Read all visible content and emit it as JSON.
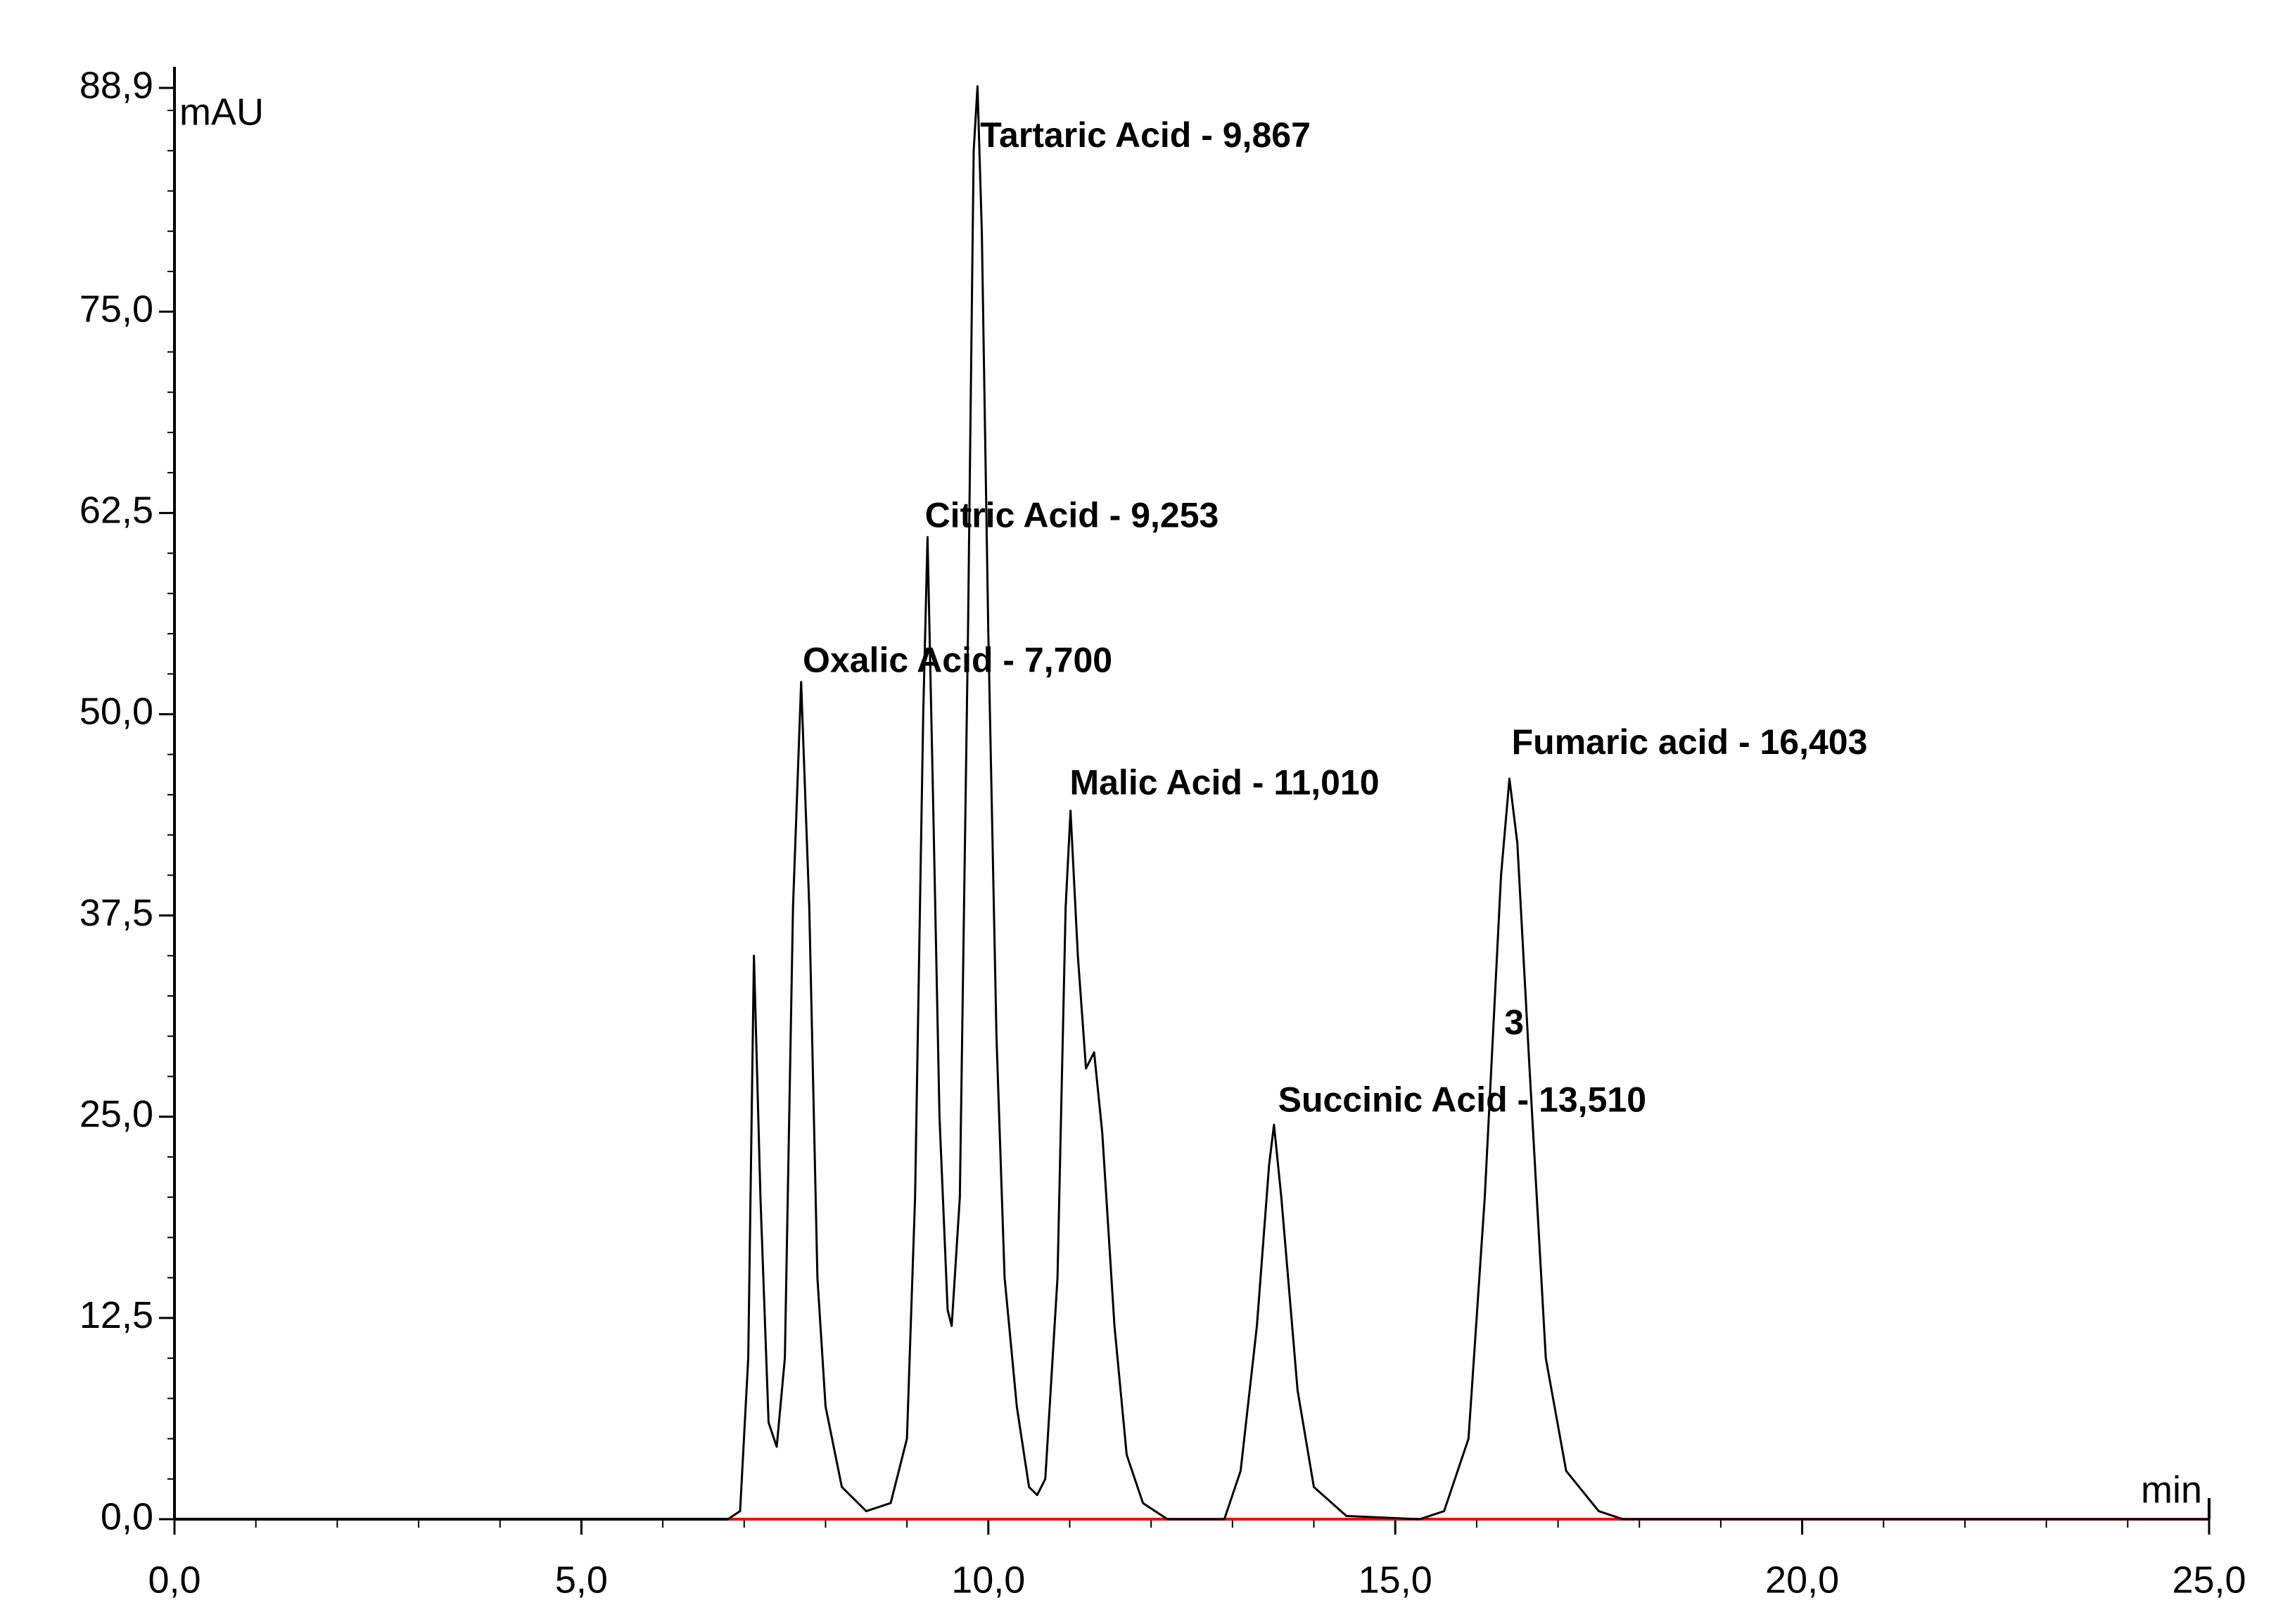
{
  "chart_data": {
    "type": "line",
    "y_label": "mAU",
    "x_label": "min",
    "xlim": [
      0,
      25
    ],
    "ylim": [
      0,
      88.9
    ],
    "xticks": [
      {
        "value": 0,
        "label": "0,0"
      },
      {
        "value": 5,
        "label": "5,0"
      },
      {
        "value": 10,
        "label": "10,0"
      },
      {
        "value": 15,
        "label": "15,0"
      },
      {
        "value": 20,
        "label": "20,0"
      },
      {
        "value": 25,
        "label": "25,0"
      }
    ],
    "yticks": [
      {
        "value": 0,
        "label": "0,0"
      },
      {
        "value": 12.5,
        "label": "12,5"
      },
      {
        "value": 25,
        "label": "25,0"
      },
      {
        "value": 37.5,
        "label": "37,5"
      },
      {
        "value": 50,
        "label": "50,0"
      },
      {
        "value": 62.5,
        "label": "62,5"
      },
      {
        "value": 75,
        "label": "75,0"
      },
      {
        "value": 88.9,
        "label": "88,9"
      }
    ],
    "grid": false,
    "x": [
      0,
      6.8,
      6.95,
      7.05,
      7.12,
      7.2,
      7.3,
      7.4,
      7.5,
      7.6,
      7.7,
      7.8,
      7.9,
      8.0,
      8.2,
      8.5,
      8.8,
      9.0,
      9.1,
      9.2,
      9.253,
      9.32,
      9.4,
      9.5,
      9.55,
      9.65,
      9.75,
      9.82,
      9.867,
      9.92,
      10.0,
      10.1,
      10.2,
      10.35,
      10.5,
      10.6,
      10.7,
      10.85,
      10.95,
      11.01,
      11.1,
      11.2,
      11.3,
      11.4,
      11.55,
      11.7,
      11.9,
      12.2,
      12.9,
      13.1,
      13.3,
      13.45,
      13.51,
      13.6,
      13.8,
      14.0,
      14.4,
      15.3,
      15.6,
      15.9,
      16.1,
      16.3,
      16.403,
      16.5,
      16.65,
      16.85,
      17.1,
      17.5,
      17.8,
      25
    ],
    "series": [
      {
        "color": "#000000",
        "values": [
          0,
          0,
          0.5,
          10,
          35,
          20,
          6,
          4.5,
          10,
          38,
          52,
          38,
          15,
          7,
          2,
          0.5,
          1,
          5,
          20,
          50,
          61,
          45,
          25,
          13,
          12,
          20,
          55,
          85,
          89,
          80,
          55,
          30,
          15,
          7,
          2,
          1.5,
          2.5,
          15,
          38,
          44,
          35,
          28,
          29,
          24,
          12,
          4,
          1,
          0,
          0,
          3,
          12,
          22,
          24.5,
          20,
          8,
          2,
          0.2,
          0,
          0.5,
          5,
          20,
          40,
          46,
          42,
          28,
          10,
          3,
          0.5,
          0,
          0
        ]
      }
    ],
    "baseline": {
      "color": "#ff0000",
      "x": [
        6.8,
        25
      ],
      "values": [
        0,
        0
      ]
    },
    "annotations": [
      {
        "text": "Tartaric Acid - 9,867",
        "x": 9.9,
        "y": 85.8
      },
      {
        "text": "Citric Acid - 9,253",
        "x": 9.22,
        "y": 62.2
      },
      {
        "text": "Oxalic Acid - 7,700",
        "x": 7.72,
        "y": 53.2
      },
      {
        "text": "Malic Acid - 11,010",
        "x": 11.0,
        "y": 45.6
      },
      {
        "text": "Fumaric acid - 16,403",
        "x": 16.43,
        "y": 48.1
      },
      {
        "text": "Succinic Acid - 13,510",
        "x": 13.56,
        "y": 25.9
      },
      {
        "text": "3",
        "x": 16.34,
        "y": 30.7
      }
    ]
  }
}
